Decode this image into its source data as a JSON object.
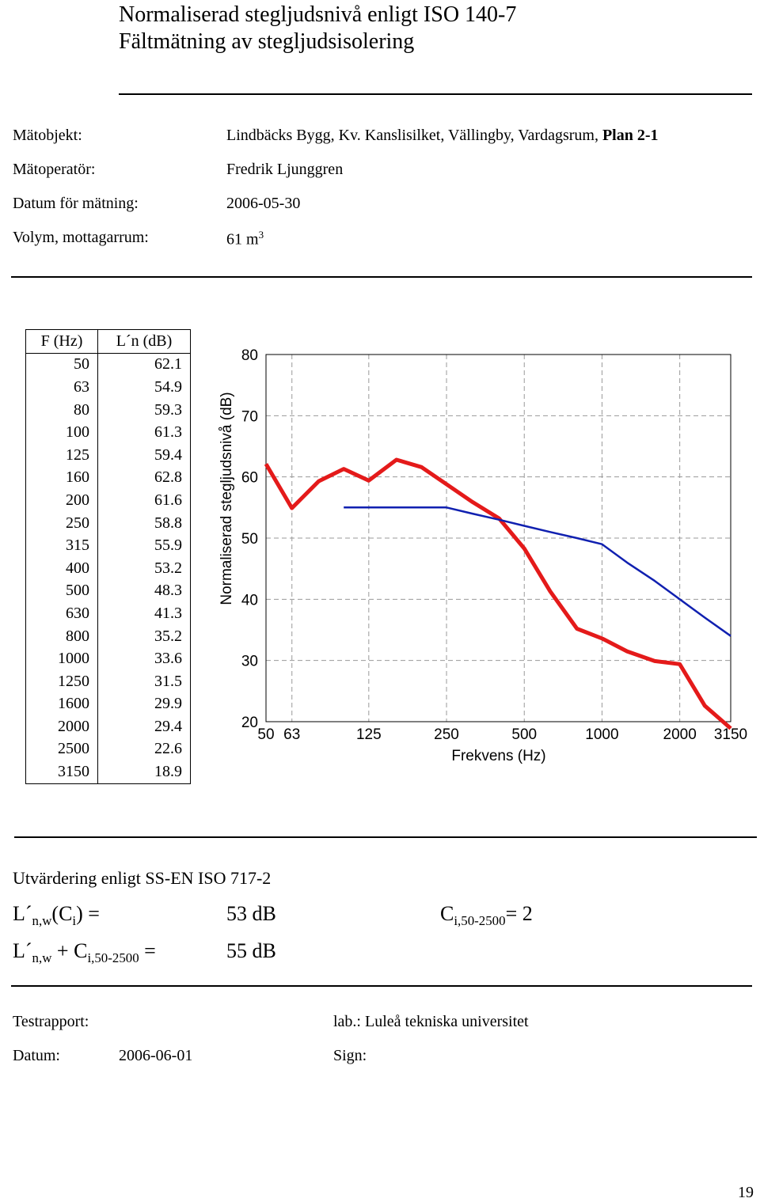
{
  "header": {
    "title_line1": "Normaliserad stegljudsnivå enligt ISO 140-7",
    "title_line2": "Fältmätning av stegljudsisolering"
  },
  "info": {
    "matobjekt_label": "Mätobjekt:",
    "matobjekt_value_prefix": "Lindbäcks Bygg, Kv. Kanslisilket, Vällingby, Vardagsrum,",
    "matobjekt_value_bold": "Plan 2-1",
    "operator_label": "Mätoperatör:",
    "operator_value": "Fredrik Ljunggren",
    "datum_label": "Datum för mätning:",
    "datum_value": "2006-05-30",
    "volym_label": "Volym, mottagarrum:",
    "volym_value": "61 m",
    "volym_sup": "3"
  },
  "table": {
    "col1_header": "F (Hz)",
    "col2_header": "L´n (dB)",
    "rows": [
      [
        "50",
        "62.1"
      ],
      [
        "63",
        "54.9"
      ],
      [
        "80",
        "59.3"
      ],
      [
        "100",
        "61.3"
      ],
      [
        "125",
        "59.4"
      ],
      [
        "160",
        "62.8"
      ],
      [
        "200",
        "61.6"
      ],
      [
        "250",
        "58.8"
      ],
      [
        "315",
        "55.9"
      ],
      [
        "400",
        "53.2"
      ],
      [
        "500",
        "48.3"
      ],
      [
        "630",
        "41.3"
      ],
      [
        "800",
        "35.2"
      ],
      [
        "1000",
        "33.6"
      ],
      [
        "1250",
        "31.5"
      ],
      [
        "1600",
        "29.9"
      ],
      [
        "2000",
        "29.4"
      ],
      [
        "2500",
        "22.6"
      ],
      [
        "3150",
        "18.9"
      ]
    ]
  },
  "chart_data": {
    "type": "line",
    "xlabel": "Frekvens (Hz)",
    "ylabel": "Normaliserad stegljudsnivå (dB)",
    "x_scale": "log (1/3-octave bands)",
    "x": [
      50,
      63,
      80,
      100,
      125,
      160,
      200,
      250,
      315,
      400,
      500,
      630,
      800,
      1000,
      1250,
      1600,
      2000,
      2500,
      3150
    ],
    "x_tick_labels": [
      "50",
      "63",
      "125",
      "250",
      "500",
      "1000",
      "2000",
      "3150"
    ],
    "x_tick_values": [
      50,
      63,
      125,
      250,
      500,
      1000,
      2000,
      3150
    ],
    "y_ticks": [
      20,
      30,
      40,
      50,
      60,
      70,
      80
    ],
    "ylim": [
      20,
      80
    ],
    "grid": true,
    "series": [
      {
        "color": "#e41a1a",
        "values": [
          62.1,
          54.9,
          59.3,
          61.3,
          59.4,
          62.8,
          61.6,
          58.8,
          55.9,
          53.2,
          48.3,
          41.3,
          35.2,
          33.6,
          31.5,
          29.9,
          29.4,
          22.6,
          18.9
        ]
      },
      {
        "color": "#1020b0",
        "x": [
          100,
          125,
          160,
          200,
          250,
          315,
          400,
          500,
          630,
          800,
          1000,
          1250,
          1600,
          2000,
          2500,
          3150
        ],
        "values": [
          55,
          55,
          55,
          55,
          55,
          54,
          53,
          52,
          51,
          50,
          49,
          46,
          43,
          40,
          37,
          34
        ]
      }
    ]
  },
  "evaluation": {
    "heading": "Utvärdering enligt SS-EN ISO 717-2",
    "row1_L": "L´",
    "row1_sub": "n,w",
    "row1_paren_open": "(C",
    "row1_paren_sub": "i",
    "row1_paren_close": ") =",
    "row1_value": "53 dB",
    "ci_C": "C",
    "ci_sub": "i,50-2500",
    "ci_eq": "= 2",
    "row2_L": "L´",
    "row2_sub": "n,w",
    "row2_plus": "+ C",
    "row2_sub2": "i,50-2500",
    "row2_eq": "=",
    "row2_value": "55 dB"
  },
  "footer": {
    "testrapport_label": "Testrapport:",
    "lab_label": "lab.: Luleå tekniska universitet",
    "datum_label": "Datum:",
    "datum_value": "2006-06-01",
    "sign_label": "Sign:",
    "page_number": "19"
  }
}
